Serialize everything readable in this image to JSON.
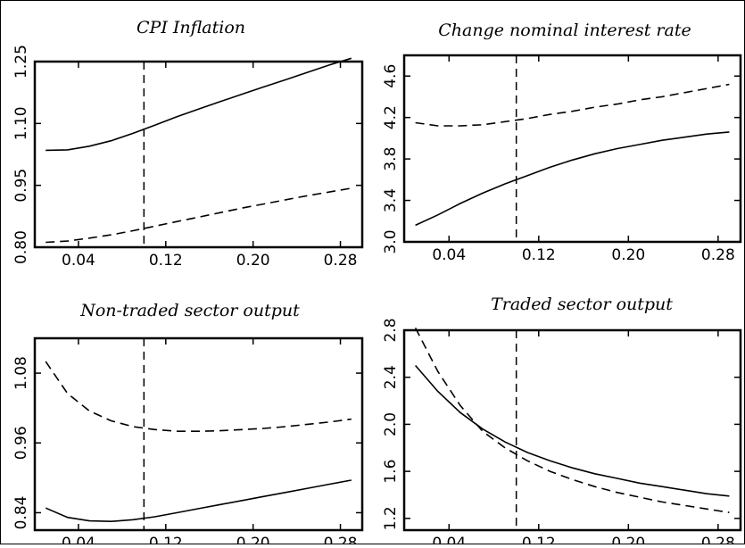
{
  "chart_data": [
    {
      "type": "line",
      "title": "CPI Inflation",
      "xlim": [
        0.0,
        0.3
      ],
      "ylim": [
        0.8,
        1.25
      ],
      "xticks": [
        "0.04",
        "0.12",
        "0.20",
        "0.28"
      ],
      "xtick_values": [
        0.04,
        0.12,
        0.2,
        0.28
      ],
      "yticks": [
        "0.80",
        "0.95",
        "1.10",
        "1.25"
      ],
      "ytick_values": [
        0.8,
        0.95,
        1.1,
        1.25
      ],
      "vline": 0.1,
      "x": [
        0.01,
        0.03,
        0.05,
        0.07,
        0.09,
        0.11,
        0.13,
        0.15,
        0.17,
        0.19,
        0.21,
        0.23,
        0.25,
        0.27,
        0.29
      ],
      "series": [
        {
          "style": "solid",
          "values": [
            1.035,
            1.036,
            1.045,
            1.058,
            1.076,
            1.096,
            1.116,
            1.135,
            1.153,
            1.171,
            1.189,
            1.206,
            1.224,
            1.242,
            1.258
          ]
        },
        {
          "style": "dashed",
          "values": [
            0.812,
            0.815,
            0.822,
            0.83,
            0.84,
            0.851,
            0.862,
            0.873,
            0.884,
            0.895,
            0.905,
            0.915,
            0.925,
            0.934,
            0.943
          ]
        }
      ]
    },
    {
      "type": "line",
      "title": "Change nominal interest rate",
      "xlim": [
        0.0,
        0.3
      ],
      "ylim": [
        3.0,
        4.8
      ],
      "xticks": [
        "0.04",
        "0.12",
        "0.20",
        "0.28"
      ],
      "xtick_values": [
        0.04,
        0.12,
        0.2,
        0.28
      ],
      "yticks": [
        "3.0",
        "3.4",
        "3.8",
        "4.2",
        "4.6"
      ],
      "ytick_values": [
        3.0,
        3.4,
        3.8,
        4.2,
        4.6
      ],
      "vline": 0.1,
      "x": [
        0.01,
        0.03,
        0.05,
        0.07,
        0.09,
        0.11,
        0.13,
        0.15,
        0.17,
        0.19,
        0.21,
        0.23,
        0.25,
        0.27,
        0.29
      ],
      "series": [
        {
          "style": "solid",
          "values": [
            3.16,
            3.26,
            3.37,
            3.47,
            3.56,
            3.64,
            3.72,
            3.79,
            3.85,
            3.9,
            3.94,
            3.98,
            4.01,
            4.04,
            4.06
          ]
        },
        {
          "style": "dashed",
          "values": [
            4.15,
            4.12,
            4.12,
            4.13,
            4.16,
            4.19,
            4.23,
            4.26,
            4.3,
            4.33,
            4.37,
            4.4,
            4.44,
            4.48,
            4.52
          ]
        }
      ]
    },
    {
      "type": "line",
      "title": "Non-traded sector output",
      "xlim": [
        0.0,
        0.3
      ],
      "ylim": [
        0.81,
        1.14
      ],
      "xticks": [
        "0.04",
        "0.12",
        "0.20",
        "0.28"
      ],
      "xtick_values": [
        0.04,
        0.12,
        0.2,
        0.28
      ],
      "yticks": [
        "0.84",
        "0.96",
        "1.08"
      ],
      "ytick_values": [
        0.84,
        0.96,
        1.08
      ],
      "vline": 0.1,
      "x": [
        0.01,
        0.03,
        0.05,
        0.07,
        0.09,
        0.11,
        0.13,
        0.15,
        0.17,
        0.19,
        0.21,
        0.23,
        0.25,
        0.27,
        0.29
      ],
      "series": [
        {
          "style": "solid",
          "values": [
            0.848,
            0.832,
            0.826,
            0.825,
            0.828,
            0.833,
            0.84,
            0.847,
            0.854,
            0.861,
            0.868,
            0.875,
            0.882,
            0.889,
            0.896
          ]
        },
        {
          "style": "dashed",
          "values": [
            1.1,
            1.045,
            1.015,
            0.998,
            0.988,
            0.983,
            0.98,
            0.98,
            0.981,
            0.983,
            0.985,
            0.988,
            0.992,
            0.996,
            1.001
          ]
        }
      ]
    },
    {
      "type": "line",
      "title": "Traded sector output",
      "xlim": [
        0.0,
        0.3
      ],
      "ylim": [
        1.1,
        2.8
      ],
      "xticks": [
        "0.04",
        "0.12",
        "0.20",
        "0.28"
      ],
      "xtick_values": [
        0.04,
        0.12,
        0.2,
        0.28
      ],
      "yticks": [
        "1.2",
        "1.6",
        "2.0",
        "2.4",
        "2.8"
      ],
      "ytick_values": [
        1.2,
        1.6,
        2.0,
        2.4,
        2.8
      ],
      "vline": 0.1,
      "x": [
        0.01,
        0.03,
        0.05,
        0.07,
        0.09,
        0.11,
        0.13,
        0.15,
        0.17,
        0.19,
        0.21,
        0.23,
        0.25,
        0.27,
        0.29
      ],
      "series": [
        {
          "style": "solid",
          "values": [
            2.5,
            2.28,
            2.1,
            1.96,
            1.85,
            1.76,
            1.69,
            1.63,
            1.58,
            1.54,
            1.5,
            1.47,
            1.44,
            1.41,
            1.39
          ]
        },
        {
          "style": "dashed",
          "values": [
            2.82,
            2.45,
            2.16,
            1.94,
            1.8,
            1.69,
            1.6,
            1.53,
            1.47,
            1.42,
            1.38,
            1.34,
            1.31,
            1.28,
            1.25
          ]
        }
      ]
    }
  ]
}
